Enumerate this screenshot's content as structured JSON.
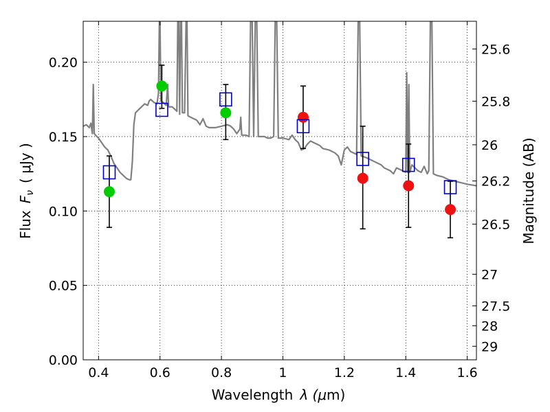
{
  "chart_data": {
    "type": "scatter",
    "xlabel": "Wavelength",
    "xlabel_symbol": "λ (",
    "xlabel_mu": "μ",
    "xlabel_unit": "m)",
    "ylabel": "Flux",
    "ylabel_symbol": "F",
    "ylabel_sub": "ν",
    "ylabel_unit": "( μJy )",
    "y2label": "Magnitude (AB)",
    "xlim": [
      0.35,
      1.63
    ],
    "ylim": [
      0.0,
      0.2275
    ],
    "grid": true,
    "x_ticks": [
      0.4,
      0.6,
      0.8,
      1.0,
      1.2,
      1.4,
      1.6
    ],
    "x_tick_labels": [
      "0.4",
      "0.6",
      "0.8",
      "1",
      "1.2",
      "1.4",
      "1.6"
    ],
    "y_ticks": [
      0.0,
      0.05,
      0.1,
      0.15,
      0.2
    ],
    "y_tick_labels": [
      "0.00",
      "0.05",
      "0.10",
      "0.15",
      "0.20"
    ],
    "y2_ticks": [
      {
        "label": "25.6",
        "flux": 0.2089
      },
      {
        "label": "25.8",
        "flux": 0.1738
      },
      {
        "label": "26",
        "flux": 0.1445
      },
      {
        "label": "26.2",
        "flux": 0.1202
      },
      {
        "label": "26.5",
        "flux": 0.0912
      },
      {
        "label": "27",
        "flux": 0.0575
      },
      {
        "label": "27.5",
        "flux": 0.0363
      },
      {
        "label": "28",
        "flux": 0.0229
      },
      {
        "label": "29",
        "flux": 0.0091
      }
    ],
    "colors": {
      "green": "#00cc00",
      "red": "#ee1111",
      "model_box": "#0000cc",
      "spectrum": "#808080",
      "errorbar": "#000000"
    },
    "series": [
      {
        "name": "observed",
        "points": [
          {
            "x": 0.435,
            "y": 0.113,
            "yerr_low": 0.089,
            "yerr_high": 0.137,
            "color": "green"
          },
          {
            "x": 0.606,
            "y": 0.184,
            "yerr_low": 0.169,
            "yerr_high": 0.198,
            "color": "green"
          },
          {
            "x": 0.814,
            "y": 0.166,
            "yerr_low": 0.148,
            "yerr_high": 0.185,
            "color": "green"
          },
          {
            "x": 1.066,
            "y": 0.163,
            "yerr_low": 0.142,
            "yerr_high": 0.184,
            "color": "red"
          },
          {
            "x": 1.26,
            "y": 0.122,
            "yerr_low": 0.088,
            "yerr_high": 0.157,
            "color": "red"
          },
          {
            "x": 1.409,
            "y": 0.117,
            "yerr_low": 0.089,
            "yerr_high": 0.145,
            "color": "red"
          },
          {
            "x": 1.545,
            "y": 0.101,
            "yerr_low": 0.082,
            "yerr_high": 0.12,
            "color": "red"
          }
        ]
      },
      {
        "name": "model_photometry",
        "points": [
          {
            "x": 0.435,
            "y": 0.126
          },
          {
            "x": 0.606,
            "y": 0.168
          },
          {
            "x": 0.814,
            "y": 0.175
          },
          {
            "x": 1.066,
            "y": 0.157
          },
          {
            "x": 1.26,
            "y": 0.135
          },
          {
            "x": 1.409,
            "y": 0.131
          },
          {
            "x": 1.545,
            "y": 0.116
          }
        ]
      },
      {
        "name": "model_spectrum",
        "points": [
          [
            0.35,
            0.157
          ],
          [
            0.36,
            0.158
          ],
          [
            0.37,
            0.156
          ],
          [
            0.375,
            0.159
          ],
          [
            0.38,
            0.152
          ],
          [
            0.383,
            0.185
          ],
          [
            0.386,
            0.152
          ],
          [
            0.39,
            0.151
          ],
          [
            0.4,
            0.149
          ],
          [
            0.41,
            0.146
          ],
          [
            0.42,
            0.143
          ],
          [
            0.43,
            0.141
          ],
          [
            0.44,
            0.137
          ],
          [
            0.45,
            0.132
          ],
          [
            0.46,
            0.129
          ],
          [
            0.47,
            0.126
          ],
          [
            0.48,
            0.124
          ],
          [
            0.49,
            0.122
          ],
          [
            0.5,
            0.121
          ],
          [
            0.505,
            0.121
          ],
          [
            0.51,
            0.133
          ],
          [
            0.515,
            0.158
          ],
          [
            0.52,
            0.166
          ],
          [
            0.53,
            0.168
          ],
          [
            0.54,
            0.17
          ],
          [
            0.55,
            0.172
          ],
          [
            0.56,
            0.171
          ],
          [
            0.565,
            0.174
          ],
          [
            0.57,
            0.175
          ],
          [
            0.58,
            0.173
          ],
          [
            0.59,
            0.172
          ],
          [
            0.595,
            0.179
          ],
          [
            0.598,
            0.228
          ],
          [
            0.6,
            0.228
          ],
          [
            0.603,
            0.174
          ],
          [
            0.61,
            0.173
          ],
          [
            0.62,
            0.171
          ],
          [
            0.625,
            0.185
          ],
          [
            0.628,
            0.17
          ],
          [
            0.64,
            0.17
          ],
          [
            0.65,
            0.168
          ],
          [
            0.655,
            0.167
          ],
          [
            0.658,
            0.228
          ],
          [
            0.661,
            0.228
          ],
          [
            0.664,
            0.165
          ],
          [
            0.667,
            0.228
          ],
          [
            0.67,
            0.228
          ],
          [
            0.673,
            0.166
          ],
          [
            0.68,
            0.166
          ],
          [
            0.685,
            0.228
          ],
          [
            0.688,
            0.228
          ],
          [
            0.691,
            0.164
          ],
          [
            0.7,
            0.163
          ],
          [
            0.72,
            0.161
          ],
          [
            0.73,
            0.158
          ],
          [
            0.74,
            0.162
          ],
          [
            0.75,
            0.157
          ],
          [
            0.76,
            0.156
          ],
          [
            0.78,
            0.156
          ],
          [
            0.8,
            0.157
          ],
          [
            0.82,
            0.158
          ],
          [
            0.83,
            0.157
          ],
          [
            0.84,
            0.155
          ],
          [
            0.85,
            0.152
          ],
          [
            0.86,
            0.155
          ],
          [
            0.863,
            0.163
          ],
          [
            0.866,
            0.151
          ],
          [
            0.88,
            0.151
          ],
          [
            0.89,
            0.15
          ],
          [
            0.895,
            0.228
          ],
          [
            0.9,
            0.228
          ],
          [
            0.905,
            0.15
          ],
          [
            0.91,
            0.228
          ],
          [
            0.915,
            0.228
          ],
          [
            0.92,
            0.15
          ],
          [
            0.94,
            0.15
          ],
          [
            0.95,
            0.149
          ],
          [
            0.96,
            0.149
          ],
          [
            0.97,
            0.15
          ],
          [
            0.975,
            0.228
          ],
          [
            0.98,
            0.228
          ],
          [
            0.985,
            0.149
          ],
          [
            1.0,
            0.149
          ],
          [
            1.02,
            0.148
          ],
          [
            1.03,
            0.151
          ],
          [
            1.04,
            0.148
          ],
          [
            1.05,
            0.146
          ],
          [
            1.06,
            0.141
          ],
          [
            1.07,
            0.142
          ],
          [
            1.08,
            0.145
          ],
          [
            1.09,
            0.147
          ],
          [
            1.1,
            0.146
          ],
          [
            1.12,
            0.144
          ],
          [
            1.13,
            0.142
          ],
          [
            1.15,
            0.141
          ],
          [
            1.17,
            0.139
          ],
          [
            1.18,
            0.137
          ],
          [
            1.19,
            0.131
          ],
          [
            1.2,
            0.141
          ],
          [
            1.21,
            0.143
          ],
          [
            1.22,
            0.14
          ],
          [
            1.23,
            0.139
          ],
          [
            1.24,
            0.138
          ],
          [
            1.245,
            0.228
          ],
          [
            1.25,
            0.228
          ],
          [
            1.255,
            0.137
          ],
          [
            1.27,
            0.136
          ],
          [
            1.29,
            0.134
          ],
          [
            1.3,
            0.133
          ],
          [
            1.32,
            0.131
          ],
          [
            1.33,
            0.129
          ],
          [
            1.35,
            0.127
          ],
          [
            1.36,
            0.125
          ],
          [
            1.37,
            0.129
          ],
          [
            1.38,
            0.128
          ],
          [
            1.39,
            0.127
          ],
          [
            1.4,
            0.126
          ],
          [
            1.403,
            0.193
          ],
          [
            1.406,
            0.126
          ],
          [
            1.41,
            0.185
          ],
          [
            1.413,
            0.126
          ],
          [
            1.42,
            0.131
          ],
          [
            1.43,
            0.129
          ],
          [
            1.44,
            0.127
          ],
          [
            1.45,
            0.126
          ],
          [
            1.46,
            0.13
          ],
          [
            1.47,
            0.125
          ],
          [
            1.475,
            0.127
          ],
          [
            1.48,
            0.228
          ],
          [
            1.485,
            0.228
          ],
          [
            1.49,
            0.125
          ],
          [
            1.5,
            0.124
          ],
          [
            1.52,
            0.123
          ],
          [
            1.54,
            0.121
          ],
          [
            1.56,
            0.12
          ],
          [
            1.58,
            0.119
          ],
          [
            1.6,
            0.118
          ],
          [
            1.63,
            0.117
          ]
        ]
      }
    ]
  }
}
